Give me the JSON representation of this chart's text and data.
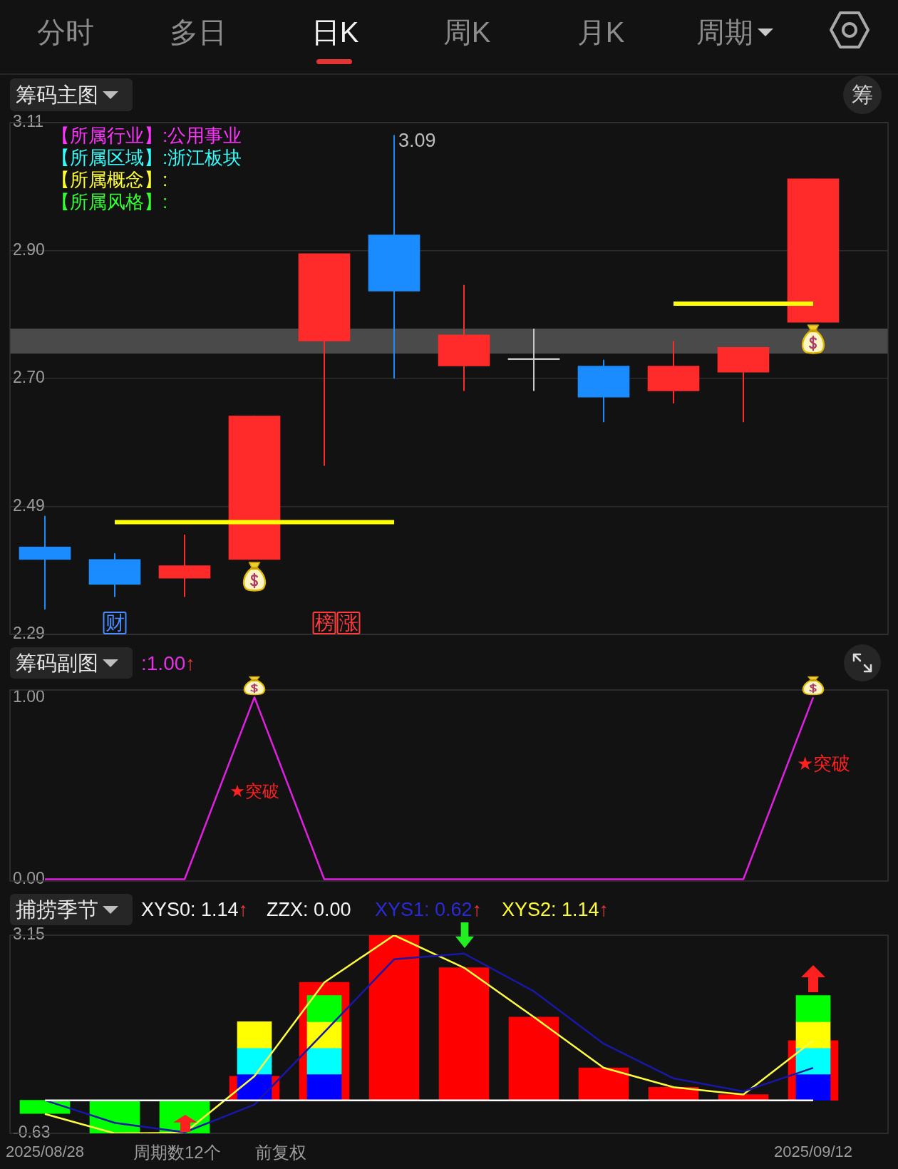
{
  "chart_data": [
    {
      "type": "candlestick",
      "categories": [
        "2025/08/28",
        null,
        null,
        null,
        null,
        null,
        null,
        null,
        null,
        null,
        null,
        "2025/09/12"
      ],
      "ohlc": [
        [
          2.43,
          2.48,
          2.33,
          2.41
        ],
        [
          2.41,
          2.42,
          2.35,
          2.37
        ],
        [
          2.38,
          2.45,
          2.35,
          2.4
        ],
        [
          2.41,
          2.64,
          2.41,
          2.64
        ],
        [
          2.76,
          2.9,
          2.56,
          2.9
        ],
        [
          2.93,
          3.09,
          2.7,
          2.84
        ],
        [
          2.72,
          2.85,
          2.68,
          2.77
        ],
        [
          2.73,
          2.78,
          2.68,
          2.73
        ],
        [
          2.72,
          2.73,
          2.63,
          2.67
        ],
        [
          2.68,
          2.76,
          2.66,
          2.72
        ],
        [
          2.71,
          2.75,
          2.63,
          2.75
        ],
        [
          2.79,
          3.02,
          2.79,
          3.02
        ]
      ],
      "colors": [
        "#1a8cff",
        "#1a8cff",
        "#ff2a2a",
        "#ff2a2a",
        "#ff2a2a",
        "#1a8cff",
        "#ff2a2a",
        "#c8c8c8",
        "#1a8cff",
        "#ff2a2a",
        "#ff2a2a",
        "#ff2a2a"
      ],
      "series": [
        {
          "type": "line",
          "color": "#ffff00",
          "values": [
            null,
            2.47,
            2.47,
            2.47,
            2.47,
            2.47,
            null,
            null,
            null,
            null,
            null,
            null
          ]
        },
        {
          "type": "line",
          "color": "#ffff00",
          "values": [
            null,
            null,
            null,
            null,
            null,
            null,
            null,
            null,
            null,
            2.82,
            2.82,
            2.82
          ]
        }
      ],
      "bands": [
        {
          "axis": "y",
          "from": 2.74,
          "to": 2.78,
          "color": "#4a4a4a"
        }
      ],
      "ylim": [
        2.29,
        3.11
      ],
      "yticks": [
        2.29,
        {
          "value": 2.495,
          "label": "2.49"
        },
        {
          "value": 2.7,
          "label": "2.70"
        },
        {
          "value": 2.905,
          "label": "2.90"
        },
        3.11
      ],
      "grid": "y",
      "tick_labels": "y",
      "annotations": [
        "分时",
        "多日",
        "日K",
        "周K",
        "月K",
        "周期",
        "筹码主图",
        "筹",
        "【所属行业】:公用事业",
        "【所属区域】:浙江板块",
        "【所属概念】:",
        "【所属风格】:",
        "3.09",
        "财",
        "榜",
        "涨"
      ]
    },
    {
      "type": "line",
      "categories": [
        "2025/08/28",
        null,
        null,
        null,
        null,
        null,
        null,
        null,
        null,
        null,
        null,
        "2025/09/12"
      ],
      "values": [
        0,
        0,
        0,
        1,
        0,
        0,
        0,
        0,
        0,
        0,
        0,
        1
      ],
      "color": "#e020e0",
      "ylim": [
        -0.01,
        1.04
      ],
      "yticks": [
        {
          "value": 0,
          "label": "0.00"
        },
        {
          "value": 1,
          "label": "1.00"
        }
      ],
      "tick_labels": "y",
      "annotations": [
        "筹码副图",
        ":1.00↑",
        "★突破",
        "★突破"
      ]
    },
    {
      "type": "bar",
      "categories": [
        "2025/08/28",
        null,
        null,
        null,
        null,
        null,
        null,
        null,
        null,
        null,
        null,
        "2025/09/12"
      ],
      "series": [
        {
          "colors": [
            "#00ff00",
            "#00ff00",
            "#00ff00",
            "#ff0000",
            "#ff0000",
            "#ff0000",
            "#ff0000",
            "#ff0000",
            "#ff0000",
            "#ff0000",
            "#ff0000",
            "#ff0000"
          ],
          "values": [
            -0.25,
            -0.63,
            -0.63,
            0.46,
            2.25,
            3.15,
            2.53,
            1.59,
            0.62,
            0.25,
            0.11,
            1.14
          ]
        },
        {
          "color": "#0000ff",
          "values": [
            null,
            null,
            null,
            0.5,
            0.5,
            null,
            null,
            null,
            null,
            null,
            null,
            0.5
          ],
          "base": [
            null,
            null,
            null,
            0,
            0,
            null,
            null,
            null,
            null,
            null,
            null,
            0
          ]
        },
        {
          "color": "#00ffff",
          "values": [
            null,
            null,
            null,
            0.5,
            0.5,
            null,
            null,
            null,
            null,
            null,
            null,
            0.5
          ],
          "base": [
            null,
            null,
            null,
            0.5,
            0.5,
            null,
            null,
            null,
            null,
            null,
            null,
            0.5
          ]
        },
        {
          "color": "#ffff00",
          "values": [
            null,
            null,
            null,
            0.5,
            0.5,
            null,
            null,
            null,
            null,
            null,
            null,
            0.5
          ],
          "base": [
            null,
            null,
            null,
            1,
            1,
            null,
            null,
            null,
            null,
            null,
            null,
            1
          ]
        },
        {
          "color": "#00ff00",
          "values": [
            null,
            null,
            null,
            null,
            0.5,
            null,
            null,
            null,
            null,
            null,
            null,
            0.5
          ],
          "base": [
            null,
            null,
            null,
            null,
            1.5,
            null,
            null,
            null,
            null,
            null,
            null,
            1.5
          ]
        },
        {
          "type": "line",
          "color": "#ffffff",
          "values": [
            0,
            0,
            0,
            0,
            0,
            0,
            0,
            0,
            0,
            0,
            0,
            0
          ]
        },
        {
          "type": "line",
          "color": "#1818a8",
          "values": [
            0,
            -0.43,
            -0.61,
            -0.08,
            1.3,
            2.69,
            2.8,
            2.08,
            1.08,
            0.42,
            0.17,
            0.62
          ]
        },
        {
          "type": "line",
          "color": "#ffff40",
          "values": [
            -0.26,
            -0.63,
            -0.62,
            0.46,
            2.25,
            3.15,
            2.53,
            1.59,
            0.62,
            0.25,
            0.11,
            1.14
          ]
        }
      ],
      "ylim": [
        -0.63,
        3.15
      ],
      "yticks": [
        -0.63,
        3.15
      ],
      "annotations": [
        "捕捞季节",
        "XYS0: 1.14↑",
        "ZZX: 0.00",
        "XYS1: 0.62↑",
        "XYS2: 1.14↑",
        "周期数12个",
        "前复权"
      ]
    }
  ]
}
